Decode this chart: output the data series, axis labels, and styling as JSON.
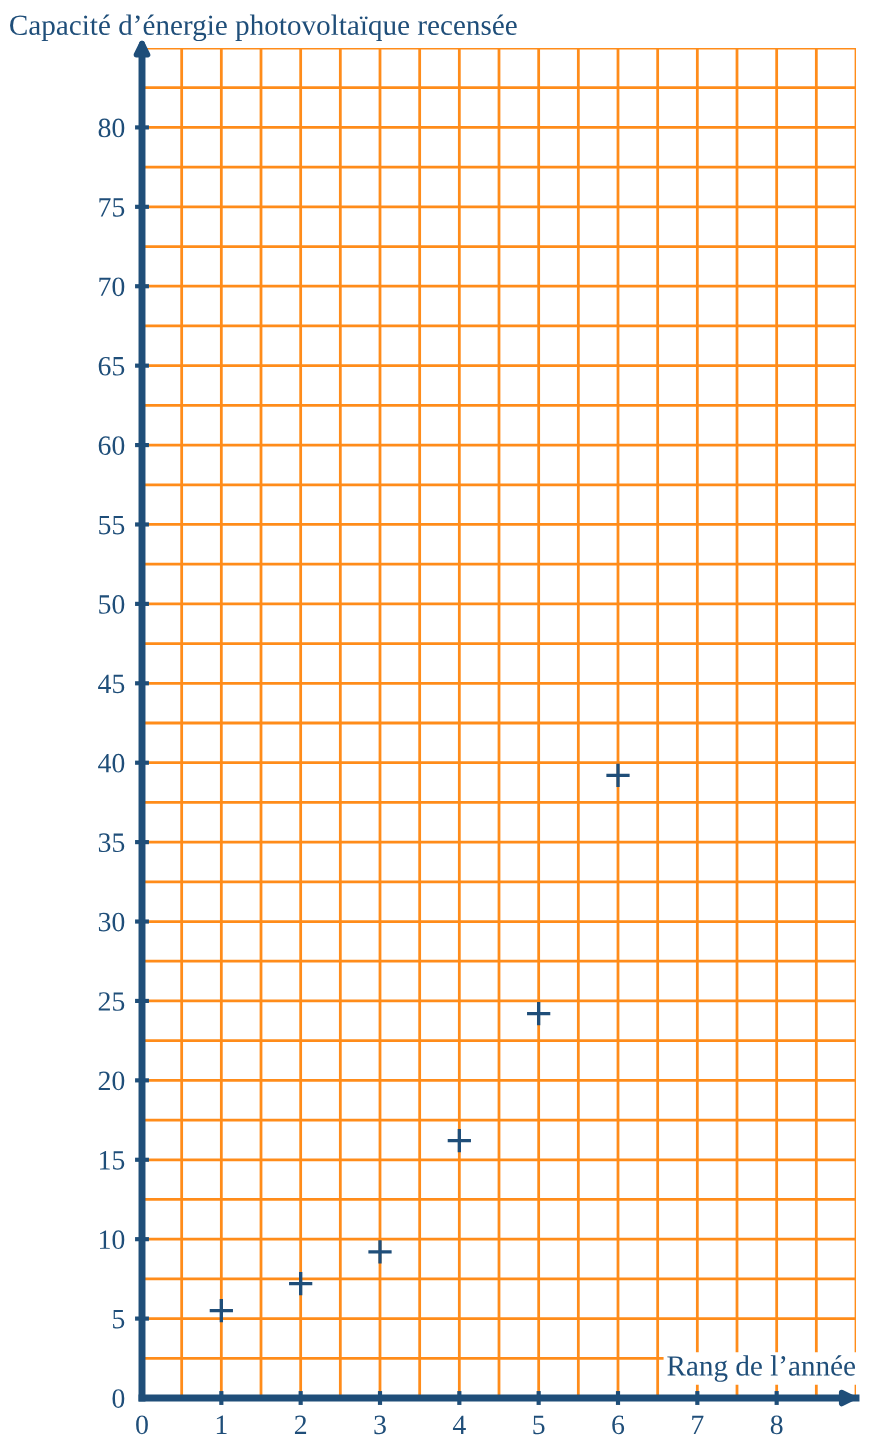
{
  "chart_data": {
    "type": "scatter",
    "ylabel": "Capacité d’énergie photovoltaïque recensée",
    "xlabel": "Rang de l’année",
    "x": [
      1,
      2,
      3,
      4,
      5,
      6
    ],
    "series": [
      {
        "color": "#1f4e79",
        "values": [
          5.5,
          7.2,
          9.2,
          16.2,
          24.2,
          39.2
        ]
      }
    ],
    "xlim": [
      0,
      9
    ],
    "ylim": [
      0,
      85
    ],
    "xticks": [
      0,
      1,
      2,
      3,
      4,
      5,
      6,
      7,
      8
    ],
    "yticks": [
      0,
      5,
      10,
      15,
      20,
      25,
      30,
      35,
      40,
      45,
      50,
      55,
      60,
      65,
      70,
      75,
      80
    ],
    "grid": true,
    "marker": "cross",
    "legend": false
  }
}
